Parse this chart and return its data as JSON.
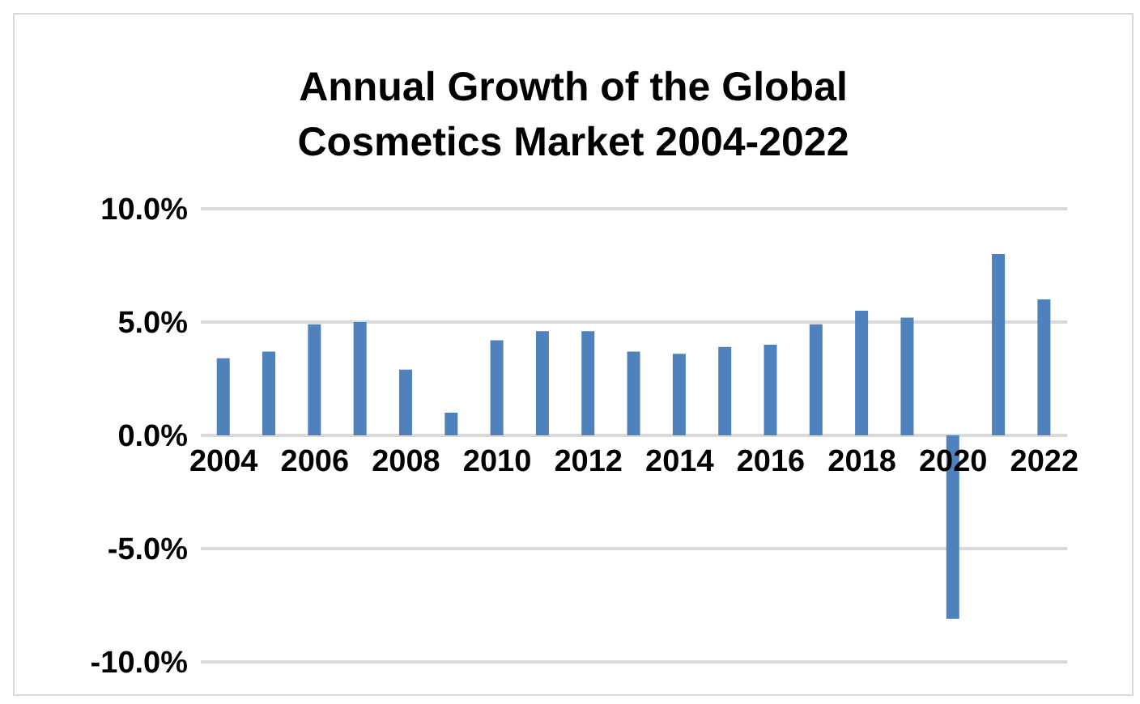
{
  "chart_data": {
    "type": "bar",
    "title": "Annual Growth of the Global Cosmetics Market 2004-2022",
    "categories": [
      "2004",
      null,
      "2006",
      null,
      "2008",
      null,
      "2010",
      null,
      "2012",
      null,
      "2014",
      null,
      "2016",
      null,
      "2018",
      null,
      "2020",
      null,
      "2022"
    ],
    "values": [
      3.4,
      3.7,
      4.9,
      5.0,
      2.9,
      1.0,
      4.2,
      4.6,
      4.6,
      3.7,
      3.6,
      3.9,
      4.0,
      4.9,
      5.5,
      5.2,
      -8.1,
      8.0,
      6.0
    ],
    "color": "#4f81bd",
    "ylim": [
      -10,
      10
    ],
    "yticks": [
      {
        "value": -10,
        "label": "-10.0%"
      },
      {
        "value": -5,
        "label": "-5.0%"
      },
      {
        "value": 0,
        "label": "0.0%"
      },
      {
        "value": 5,
        "label": "5.0%"
      },
      {
        "value": 10,
        "label": "10.0%"
      }
    ],
    "grid": "y"
  }
}
